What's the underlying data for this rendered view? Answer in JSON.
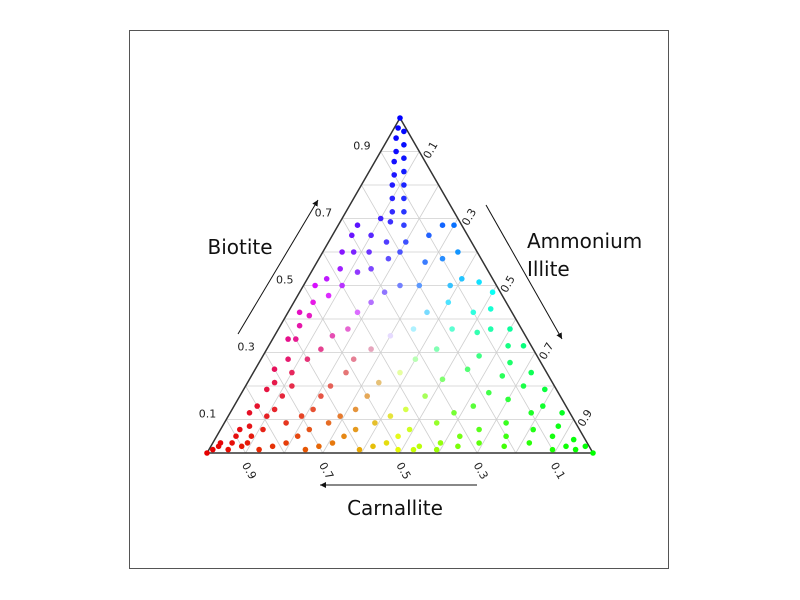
{
  "chart_data": {
    "type": "scatter",
    "subtype": "ternary",
    "axes": {
      "bottom": {
        "label": "Carnallite",
        "ticks": [
          "0.9",
          "0.7",
          "0.5",
          "0.3",
          "0.1"
        ],
        "direction": "right-to-left"
      },
      "left": {
        "label": "Biotite",
        "ticks": [
          "0.1",
          "0.3",
          "0.5",
          "0.7",
          "0.9"
        ],
        "direction": "bottom-to-top"
      },
      "right": {
        "label_lines": [
          "Ammonium",
          "Illite"
        ],
        "ticks": [
          "0.1",
          "0.3",
          "0.5",
          "0.7",
          "0.9"
        ],
        "direction": "top-to-bottom"
      }
    },
    "grid": true,
    "color_encoding": "red = Carnallite, green = Ammonium Illite, blue = Biotite",
    "points_note": "each point is (Carnallite, Ammonium Illite, Biotite) summing to 1",
    "points": [
      [
        0.0,
        0.0,
        1.0
      ],
      [
        0.02,
        0.01,
        0.97
      ],
      [
        0.01,
        0.03,
        0.96
      ],
      [
        0.04,
        0.02,
        0.94
      ],
      [
        0.03,
        0.05,
        0.92
      ],
      [
        0.06,
        0.04,
        0.9
      ],
      [
        0.05,
        0.07,
        0.88
      ],
      [
        0.08,
        0.05,
        0.87
      ],
      [
        0.07,
        0.09,
        0.84
      ],
      [
        0.1,
        0.07,
        0.83
      ],
      [
        0.09,
        0.11,
        0.8
      ],
      [
        0.12,
        0.08,
        0.8
      ],
      [
        0.11,
        0.13,
        0.76
      ],
      [
        0.14,
        0.1,
        0.76
      ],
      [
        0.13,
        0.15,
        0.72
      ],
      [
        0.16,
        0.12,
        0.72
      ],
      [
        0.15,
        0.17,
        0.68
      ],
      [
        0.18,
        0.13,
        0.69
      ],
      [
        0.2,
        0.1,
        0.7
      ],
      [
        0.17,
        0.2,
        0.63
      ],
      [
        0.22,
        0.15,
        0.63
      ],
      [
        0.25,
        0.1,
        0.65
      ],
      [
        0.27,
        0.05,
        0.68
      ],
      [
        0.05,
        0.27,
        0.68
      ],
      [
        0.1,
        0.25,
        0.65
      ],
      [
        0.3,
        0.05,
        0.65
      ],
      [
        0.02,
        0.3,
        0.68
      ],
      [
        0.2,
        0.2,
        0.6
      ],
      [
        0.24,
        0.18,
        0.58
      ],
      [
        0.28,
        0.12,
        0.6
      ],
      [
        0.32,
        0.08,
        0.6
      ],
      [
        0.35,
        0.05,
        0.6
      ],
      [
        0.05,
        0.35,
        0.6
      ],
      [
        0.1,
        0.32,
        0.58
      ],
      [
        0.15,
        0.28,
        0.57
      ],
      [
        0.3,
        0.15,
        0.55
      ],
      [
        0.34,
        0.12,
        0.54
      ],
      [
        0.38,
        0.07,
        0.55
      ],
      [
        0.08,
        0.4,
        0.52
      ],
      [
        0.12,
        0.38,
        0.5
      ],
      [
        0.2,
        0.3,
        0.5
      ],
      [
        0.25,
        0.25,
        0.5
      ],
      [
        0.4,
        0.1,
        0.5
      ],
      [
        0.43,
        0.05,
        0.52
      ],
      [
        0.04,
        0.45,
        0.51
      ],
      [
        0.3,
        0.22,
        0.48
      ],
      [
        0.45,
        0.08,
        0.47
      ],
      [
        0.47,
        0.03,
        0.5
      ],
      [
        0.02,
        0.5,
        0.48
      ],
      [
        0.15,
        0.4,
        0.45
      ],
      [
        0.35,
        0.2,
        0.45
      ],
      [
        0.5,
        0.05,
        0.45
      ],
      [
        0.05,
        0.52,
        0.43
      ],
      [
        0.1,
        0.48,
        0.42
      ],
      [
        0.22,
        0.36,
        0.42
      ],
      [
        0.4,
        0.18,
        0.42
      ],
      [
        0.53,
        0.06,
        0.41
      ],
      [
        0.55,
        0.03,
        0.42
      ],
      [
        0.08,
        0.55,
        0.37
      ],
      [
        0.18,
        0.45,
        0.37
      ],
      [
        0.28,
        0.35,
        0.37
      ],
      [
        0.45,
        0.18,
        0.37
      ],
      [
        0.57,
        0.05,
        0.38
      ],
      [
        0.03,
        0.6,
        0.37
      ],
      [
        0.12,
        0.52,
        0.36
      ],
      [
        0.35,
        0.3,
        0.35
      ],
      [
        0.5,
        0.15,
        0.35
      ],
      [
        0.6,
        0.06,
        0.34
      ],
      [
        0.06,
        0.62,
        0.32
      ],
      [
        0.25,
        0.44,
        0.31
      ],
      [
        0.42,
        0.27,
        0.31
      ],
      [
        0.55,
        0.14,
        0.31
      ],
      [
        0.62,
        0.04,
        0.34
      ],
      [
        0.02,
        0.66,
        0.32
      ],
      [
        0.15,
        0.56,
        0.29
      ],
      [
        0.32,
        0.4,
        0.28
      ],
      [
        0.48,
        0.24,
        0.28
      ],
      [
        0.6,
        0.12,
        0.28
      ],
      [
        0.65,
        0.07,
        0.28
      ],
      [
        0.08,
        0.65,
        0.27
      ],
      [
        0.2,
        0.55,
        0.25
      ],
      [
        0.38,
        0.38,
        0.24
      ],
      [
        0.52,
        0.24,
        0.24
      ],
      [
        0.66,
        0.1,
        0.24
      ],
      [
        0.7,
        0.05,
        0.25
      ],
      [
        0.04,
        0.72,
        0.24
      ],
      [
        0.12,
        0.65,
        0.23
      ],
      [
        0.28,
        0.5,
        0.22
      ],
      [
        0.45,
        0.34,
        0.21
      ],
      [
        0.58,
        0.22,
        0.2
      ],
      [
        0.68,
        0.12,
        0.2
      ],
      [
        0.72,
        0.07,
        0.21
      ],
      [
        0.08,
        0.72,
        0.2
      ],
      [
        0.18,
        0.64,
        0.18
      ],
      [
        0.35,
        0.48,
        0.17
      ],
      [
        0.5,
        0.33,
        0.17
      ],
      [
        0.62,
        0.21,
        0.17
      ],
      [
        0.72,
        0.11,
        0.17
      ],
      [
        0.75,
        0.06,
        0.19
      ],
      [
        0.03,
        0.78,
        0.19
      ],
      [
        0.14,
        0.7,
        0.16
      ],
      [
        0.24,
        0.62,
        0.14
      ],
      [
        0.42,
        0.45,
        0.13
      ],
      [
        0.55,
        0.32,
        0.13
      ],
      [
        0.66,
        0.21,
        0.13
      ],
      [
        0.76,
        0.11,
        0.13
      ],
      [
        0.8,
        0.06,
        0.14
      ],
      [
        0.06,
        0.8,
        0.14
      ],
      [
        0.1,
        0.78,
        0.12
      ],
      [
        0.3,
        0.58,
        0.12
      ],
      [
        0.47,
        0.42,
        0.11
      ],
      [
        0.6,
        0.29,
        0.11
      ],
      [
        0.7,
        0.19,
        0.11
      ],
      [
        0.79,
        0.1,
        0.11
      ],
      [
        0.83,
        0.05,
        0.12
      ],
      [
        0.02,
        0.86,
        0.12
      ],
      [
        0.18,
        0.73,
        0.09
      ],
      [
        0.36,
        0.55,
        0.09
      ],
      [
        0.52,
        0.39,
        0.09
      ],
      [
        0.64,
        0.27,
        0.09
      ],
      [
        0.75,
        0.16,
        0.09
      ],
      [
        0.85,
        0.07,
        0.08
      ],
      [
        0.05,
        0.87,
        0.08
      ],
      [
        0.12,
        0.81,
        0.07
      ],
      [
        0.26,
        0.67,
        0.07
      ],
      [
        0.44,
        0.49,
        0.07
      ],
      [
        0.58,
        0.35,
        0.07
      ],
      [
        0.7,
        0.23,
        0.07
      ],
      [
        0.82,
        0.11,
        0.07
      ],
      [
        0.88,
        0.05,
        0.07
      ],
      [
        0.08,
        0.87,
        0.05
      ],
      [
        0.2,
        0.75,
        0.05
      ],
      [
        0.32,
        0.63,
        0.05
      ],
      [
        0.48,
        0.47,
        0.05
      ],
      [
        0.62,
        0.33,
        0.05
      ],
      [
        0.74,
        0.21,
        0.05
      ],
      [
        0.86,
        0.09,
        0.05
      ],
      [
        0.9,
        0.05,
        0.05
      ],
      [
        0.03,
        0.93,
        0.04
      ],
      [
        0.15,
        0.82,
        0.03
      ],
      [
        0.28,
        0.69,
        0.03
      ],
      [
        0.38,
        0.59,
        0.03
      ],
      [
        0.52,
        0.45,
        0.03
      ],
      [
        0.66,
        0.31,
        0.03
      ],
      [
        0.78,
        0.19,
        0.03
      ],
      [
        0.88,
        0.09,
        0.03
      ],
      [
        0.92,
        0.05,
        0.03
      ],
      [
        0.95,
        0.02,
        0.03
      ],
      [
        0.01,
        0.97,
        0.02
      ],
      [
        0.06,
        0.92,
        0.02
      ],
      [
        0.22,
        0.76,
        0.02
      ],
      [
        0.34,
        0.64,
        0.02
      ],
      [
        0.44,
        0.54,
        0.02
      ],
      [
        0.56,
        0.42,
        0.02
      ],
      [
        0.7,
        0.28,
        0.02
      ],
      [
        0.82,
        0.16,
        0.02
      ],
      [
        0.9,
        0.08,
        0.02
      ],
      [
        0.96,
        0.02,
        0.02
      ],
      [
        0.98,
        0.01,
        0.01
      ],
      [
        0.0,
        1.0,
        0.0
      ],
      [
        0.04,
        0.95,
        0.01
      ],
      [
        0.1,
        0.89,
        0.01
      ],
      [
        0.4,
        0.59,
        0.01
      ],
      [
        0.5,
        0.49,
        0.01
      ],
      [
        0.6,
        0.39,
        0.01
      ],
      [
        0.74,
        0.25,
        0.01
      ],
      [
        0.86,
        0.13,
        0.01
      ],
      [
        0.94,
        0.05,
        0.01
      ],
      [
        1.0,
        0.0,
        0.0
      ],
      [
        0.46,
        0.53,
        0.01
      ]
    ]
  }
}
